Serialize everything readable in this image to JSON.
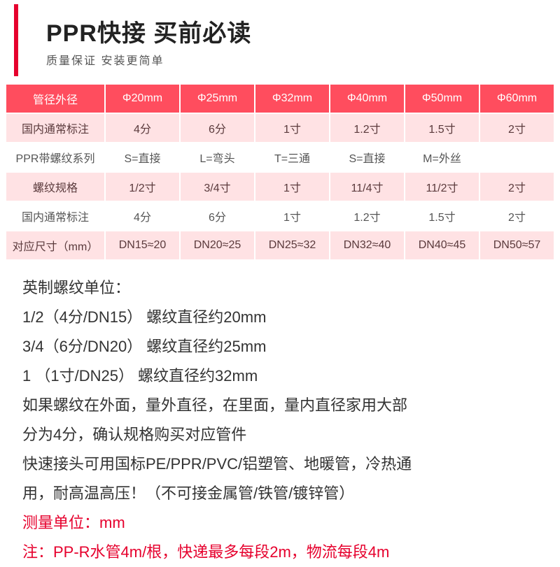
{
  "header": {
    "title": "PPR快接 买前必读",
    "subtitle": "质量保证 安装更简单"
  },
  "table": {
    "header_row": {
      "label": "管径外径",
      "cols": [
        "Φ20mm",
        "Φ25mm",
        "Φ32mm",
        "Φ40mm",
        "Φ50mm",
        "Φ60mm"
      ]
    },
    "rows": [
      {
        "style": "pink",
        "label": "国内通常标注",
        "cells": [
          "4分",
          "6分",
          "1寸",
          "1.2寸",
          "1.5寸",
          "2寸"
        ]
      },
      {
        "style": "white",
        "label": "PPR带螺纹系列",
        "cells": [
          "S=直接",
          "L=弯头",
          "T=三通",
          "S=直接",
          "M=外丝",
          ""
        ]
      },
      {
        "style": "pink",
        "label": "螺纹规格",
        "cells": [
          "1/2寸",
          "3/4寸",
          "1寸",
          "11/4寸",
          "11/2寸",
          "2寸"
        ]
      },
      {
        "style": "white",
        "label": "国内通常标注",
        "cells": [
          "4分",
          "6分",
          "1寸",
          "1.2寸",
          "1.5寸",
          "2寸"
        ]
      },
      {
        "style": "pink",
        "label": "对应尺寸（mm）",
        "cells": [
          "DN15≈20",
          "DN20≈25",
          "DN25≈32",
          "DN32≈40",
          "DN40≈45",
          "DN50≈57"
        ]
      }
    ]
  },
  "notes": {
    "l1": "英制螺纹单位：",
    "l2": "1/2（4分/DN15）  螺纹直径约20mm",
    "l3": "3/4（6分/DN20）  螺纹直径约25mm",
    "l4": "1   （1寸/DN25）  螺纹直径约32mm",
    "l5": "如果螺纹在外面，量外直径，在里面，量内直径家用大部",
    "l6": "分为4分，确认规格购买对应管件",
    "l7": "快速接头可用国标PE/PPR/PVC/铝塑管、地暖管，冷热通",
    "l8": "用，耐高温高压！（不可接金属管/铁管/镀锌管）",
    "l9": "测量单位：mm",
    "l10": "注：PP-R水管4m/根，快递最多每段2m，物流每段4m"
  },
  "colors": {
    "accent": "#e6002d",
    "header_bg": "#ff4d5e",
    "pink_bg": "#ffe2e4",
    "text": "#333333"
  }
}
